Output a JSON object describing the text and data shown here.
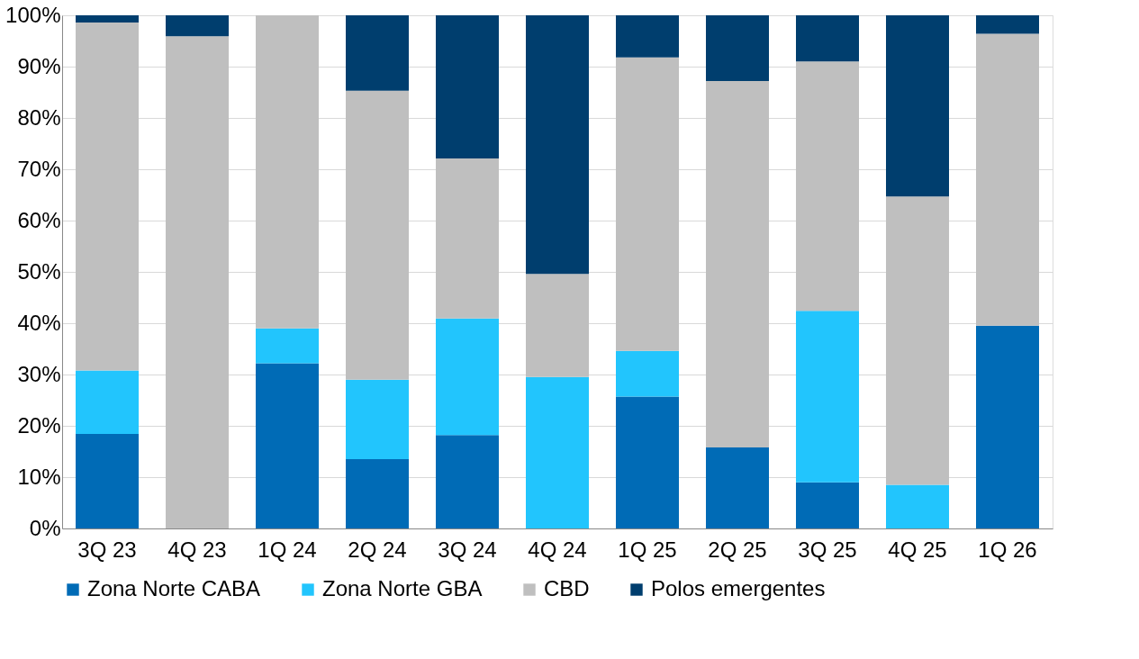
{
  "chart_data": {
    "type": "bar",
    "stacked": true,
    "categories": [
      "3Q 23",
      "4Q 23",
      "1Q 24",
      "2Q 24",
      "3Q 24",
      "4Q 24",
      "1Q 25",
      "2Q 25",
      "3Q 25",
      "4Q 25",
      "1Q 26"
    ],
    "series": [
      {
        "name": "Zona Norte CABA",
        "color": "#006bb6",
        "values": [
          18.4,
          0,
          32.2,
          13.5,
          18.2,
          0,
          25.7,
          15.8,
          9.0,
          0,
          39.5
        ]
      },
      {
        "name": "Zona Norte GBA",
        "color": "#22c5fd",
        "values": [
          12.4,
          0,
          6.8,
          15.5,
          22.7,
          29.5,
          8.9,
          0,
          33.4,
          8.5,
          0
        ]
      },
      {
        "name": "CBD",
        "color": "#bfbfbf",
        "values": [
          67.8,
          95.9,
          61.0,
          56.3,
          31.2,
          20.1,
          57.2,
          71.4,
          48.6,
          56.2,
          56.9
        ]
      },
      {
        "name": "Polos emergentes",
        "color": "#003e6e",
        "values": [
          1.4,
          4.1,
          0,
          14.7,
          27.9,
          50.4,
          8.2,
          12.8,
          9.0,
          35.3,
          3.6
        ]
      }
    ],
    "ylim": [
      0,
      100
    ],
    "yticks": [
      {
        "value": 0,
        "label": "0%"
      },
      {
        "value": 10,
        "label": "10%"
      },
      {
        "value": 20,
        "label": "20%"
      },
      {
        "value": 30,
        "label": "30%"
      },
      {
        "value": 40,
        "label": "40%"
      },
      {
        "value": 50,
        "label": "50%"
      },
      {
        "value": 60,
        "label": "60%"
      },
      {
        "value": 70,
        "label": "70%"
      },
      {
        "value": 80,
        "label": "80%"
      },
      {
        "value": 90,
        "label": "90%"
      },
      {
        "value": 100,
        "label": "100%"
      }
    ],
    "grid": "y",
    "legend": "bottom"
  }
}
